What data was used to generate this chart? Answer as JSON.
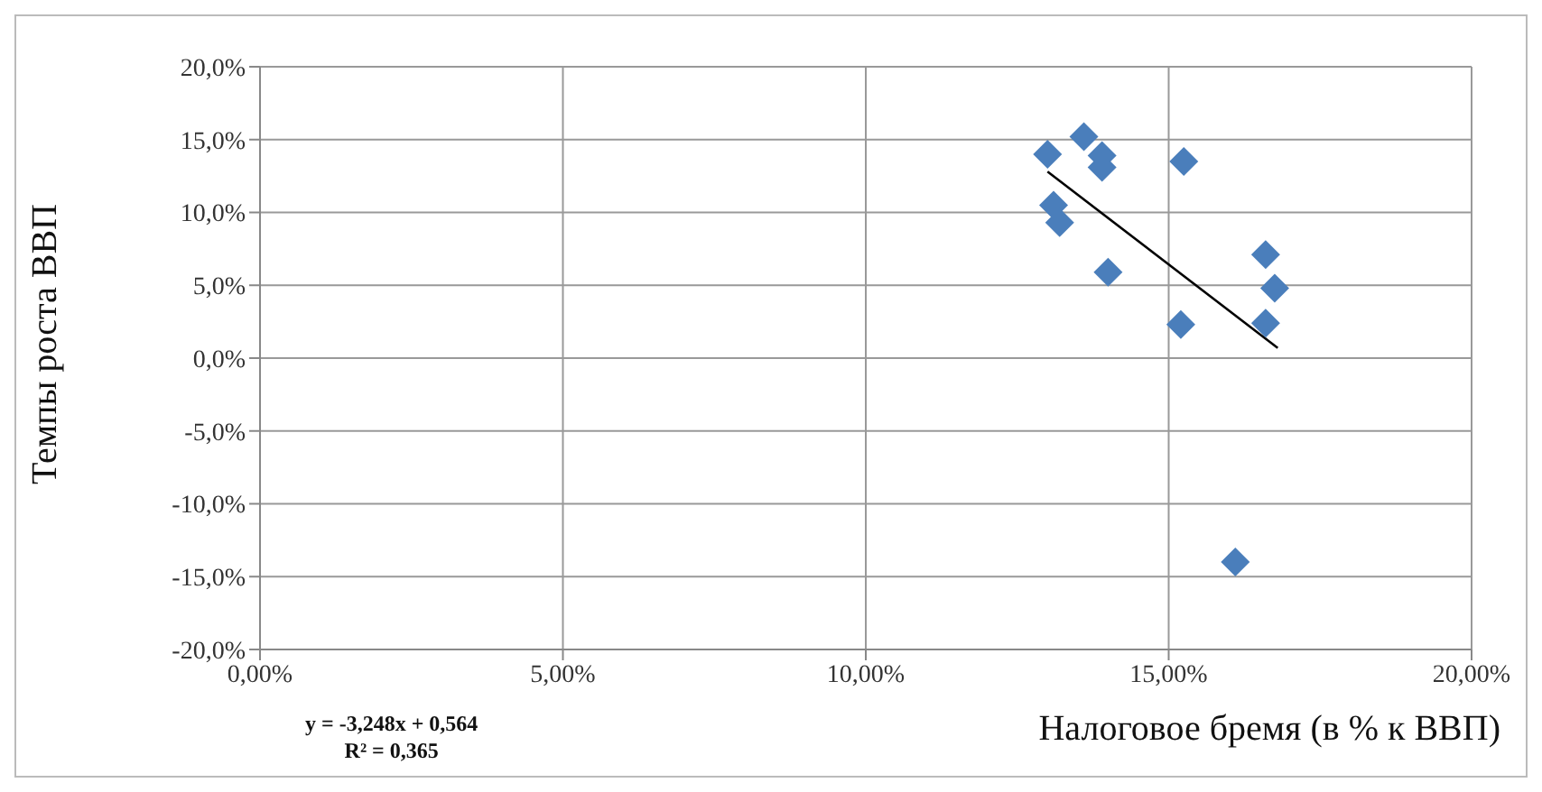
{
  "chart_data": {
    "type": "scatter",
    "ylabel": "Темпы роста  ВВП",
    "xlabel": "Налоговое бремя (в % к ВВП)",
    "annotations": [
      "y = -3,248x + 0,564",
      "R² = 0,365"
    ],
    "series": [
      {
        "color": "#4a7ebb",
        "marker": "diamond",
        "x": [
          13.0,
          13.6,
          13.9,
          13.9,
          13.1,
          13.2,
          14.0,
          15.25,
          15.2,
          16.6,
          16.75,
          16.6,
          16.1
        ],
        "values": [
          14.0,
          15.2,
          13.9,
          13.1,
          10.5,
          9.3,
          5.9,
          13.5,
          2.3,
          7.1,
          4.8,
          2.4,
          -14.0
        ]
      },
      {
        "type": "line",
        "color": "#000000",
        "marker": "none",
        "x": [
          13.0,
          16.8
        ],
        "values": [
          12.8,
          0.7
        ]
      }
    ],
    "xlim": [
      0,
      20
    ],
    "xticks": [
      {
        "value": 0,
        "label": "0,00%"
      },
      {
        "value": 5,
        "label": "5,00%"
      },
      {
        "value": 10,
        "label": "10,00%"
      },
      {
        "value": 15,
        "label": "15,00%"
      },
      {
        "value": 20,
        "label": "20,00%"
      }
    ],
    "ylim": [
      -20,
      20
    ],
    "yticks": [
      {
        "value": -20,
        "label": "-20,0%"
      },
      {
        "value": -15,
        "label": "-15,0%"
      },
      {
        "value": -10,
        "label": "-10,0%"
      },
      {
        "value": -5,
        "label": "-5,0%"
      },
      {
        "value": 0,
        "label": "0,0%"
      },
      {
        "value": 5,
        "label": "5,0%"
      },
      {
        "value": 10,
        "label": "10,0%"
      },
      {
        "value": 15,
        "label": "15,0%"
      },
      {
        "value": 20,
        "label": "20,0%"
      }
    ],
    "grid": true,
    "legend": false
  }
}
